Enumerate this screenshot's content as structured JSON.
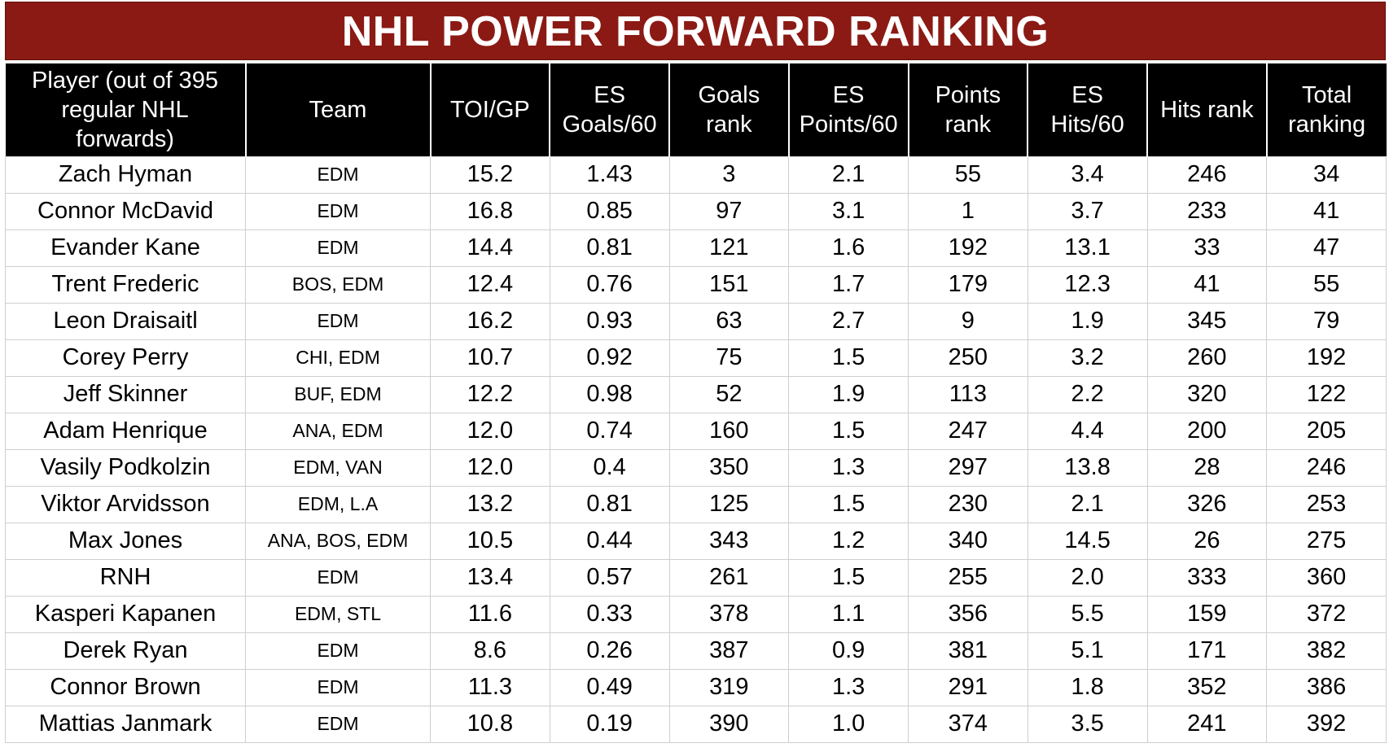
{
  "chart_data": {
    "type": "table",
    "title": "NHL POWER FORWARD RANKING",
    "columns": [
      "Player (out of 395 regular NHL forwards)",
      "Team",
      "TOI/GP",
      "ES Goals/60",
      "Goals rank",
      "ES Points/60",
      "Points rank",
      "ES Hits/60",
      "Hits rank",
      "Total ranking"
    ],
    "rows": [
      [
        "Zach Hyman",
        "EDM",
        "15.2",
        "1.43",
        "3",
        "2.1",
        "55",
        "3.4",
        "246",
        "34"
      ],
      [
        "Connor McDavid",
        "EDM",
        "16.8",
        "0.85",
        "97",
        "3.1",
        "1",
        "3.7",
        "233",
        "41"
      ],
      [
        "Evander Kane",
        "EDM",
        "14.4",
        "0.81",
        "121",
        "1.6",
        "192",
        "13.1",
        "33",
        "47"
      ],
      [
        "Trent Frederic",
        "BOS, EDM",
        "12.4",
        "0.76",
        "151",
        "1.7",
        "179",
        "12.3",
        "41",
        "55"
      ],
      [
        "Leon Draisaitl",
        "EDM",
        "16.2",
        "0.93",
        "63",
        "2.7",
        "9",
        "1.9",
        "345",
        "79"
      ],
      [
        "Corey Perry",
        "CHI, EDM",
        "10.7",
        "0.92",
        "75",
        "1.5",
        "250",
        "3.2",
        "260",
        "192"
      ],
      [
        "Jeff Skinner",
        "BUF, EDM",
        "12.2",
        "0.98",
        "52",
        "1.9",
        "113",
        "2.2",
        "320",
        "122"
      ],
      [
        "Adam Henrique",
        "ANA, EDM",
        "12.0",
        "0.74",
        "160",
        "1.5",
        "247",
        "4.4",
        "200",
        "205"
      ],
      [
        "Vasily Podkolzin",
        "EDM, VAN",
        "12.0",
        "0.4",
        "350",
        "1.3",
        "297",
        "13.8",
        "28",
        "246"
      ],
      [
        "Viktor Arvidsson",
        "EDM, L.A",
        "13.2",
        "0.81",
        "125",
        "1.5",
        "230",
        "2.1",
        "326",
        "253"
      ],
      [
        "Max Jones",
        "ANA, BOS, EDM",
        "10.5",
        "0.44",
        "343",
        "1.2",
        "340",
        "14.5",
        "26",
        "275"
      ],
      [
        "RNH",
        "EDM",
        "13.4",
        "0.57",
        "261",
        "1.5",
        "255",
        "2.0",
        "333",
        "360"
      ],
      [
        "Kasperi Kapanen",
        "EDM, STL",
        "11.6",
        "0.33",
        "378",
        "1.1",
        "356",
        "5.5",
        "159",
        "372"
      ],
      [
        "Derek Ryan",
        "EDM",
        "8.6",
        "0.26",
        "387",
        "0.9",
        "381",
        "5.1",
        "171",
        "382"
      ],
      [
        "Connor Brown",
        "EDM",
        "11.3",
        "0.49",
        "319",
        "1.3",
        "291",
        "1.8",
        "352",
        "386"
      ],
      [
        "Mattias Janmark",
        "EDM",
        "10.8",
        "0.19",
        "390",
        "1.0",
        "374",
        "3.5",
        "241",
        "392"
      ]
    ]
  },
  "colors": {
    "title_background": "#8b1a14",
    "header_background": "#000000",
    "header_text": "#ffffff",
    "grid_line": "#cfcfcf"
  }
}
